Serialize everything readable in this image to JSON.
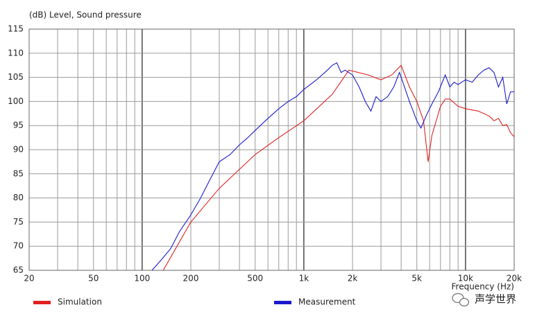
{
  "chart_data": {
    "type": "line",
    "title": "(dB)  Level, Sound pressure",
    "x_label": "Frequency  (Hz)",
    "x_log": true,
    "grid": true,
    "legend_position": "bottom",
    "watermark": "声学世界",
    "xlim": [
      20,
      20000
    ],
    "ylim": [
      65,
      115
    ],
    "xticks": [
      20,
      50,
      100,
      200,
      500,
      {
        "value": 1000,
        "label": "1k"
      },
      {
        "value": 2000,
        "label": "2k"
      },
      {
        "value": 5000,
        "label": "5k"
      },
      {
        "value": 10000,
        "label": "10k"
      },
      {
        "value": 20000,
        "label": "20k"
      }
    ],
    "x_minor_ticks": [
      30,
      40,
      60,
      70,
      80,
      90,
      300,
      400,
      600,
      700,
      800,
      900,
      3000,
      4000,
      6000,
      7000,
      8000,
      9000
    ],
    "yticks": [
      65,
      70,
      75,
      80,
      85,
      90,
      95,
      100,
      105,
      110,
      115
    ],
    "series": [
      {
        "name": "Simulation",
        "color": "#e02020",
        "x": [
          135,
          200,
          300,
          500,
          700,
          1000,
          1500,
          1900,
          2500,
          3000,
          3500,
          4000,
          4500,
          5000,
          5500,
          5870,
          6200,
          7000,
          7500,
          8000,
          9000,
          10000,
          12000,
          14000,
          15000,
          16000,
          17000,
          18000,
          19000,
          20000
        ],
        "values": [
          65,
          75,
          82,
          89,
          92.5,
          96,
          101.5,
          106.5,
          105.5,
          104.5,
          105.5,
          107.5,
          103,
          100,
          96,
          87.5,
          93,
          99,
          100.5,
          100.5,
          99,
          98.5,
          98,
          97,
          96,
          96.5,
          95,
          95.2,
          93.5,
          92.7
        ]
      },
      {
        "name": "Measurement",
        "color": "#1a1acc",
        "x": [
          115,
          130,
          150,
          170,
          200,
          230,
          260,
          300,
          350,
          400,
          450,
          500,
          600,
          700,
          800,
          900,
          1000,
          1200,
          1400,
          1500,
          1600,
          1700,
          1800,
          2000,
          2200,
          2400,
          2600,
          2800,
          3000,
          3300,
          3600,
          3900,
          4100,
          4500,
          5000,
          5300,
          5700,
          6200,
          6800,
          7500,
          8000,
          8500,
          9000,
          10000,
          11000,
          12000,
          13000,
          14000,
          15000,
          16000,
          17000,
          18000,
          19000,
          20000
        ],
        "values": [
          65,
          67,
          69.5,
          73,
          76.5,
          80,
          83.5,
          87.5,
          89,
          91,
          92.5,
          94,
          96.5,
          98.5,
          100,
          101,
          102.5,
          104.5,
          106.5,
          107.5,
          108,
          106,
          106.5,
          105.5,
          103,
          100,
          98,
          101,
          100,
          101,
          103,
          106,
          104,
          100,
          96,
          94.5,
          97,
          99.5,
          102,
          105.5,
          103,
          104,
          103.5,
          104.5,
          104,
          105.5,
          106.5,
          107,
          106,
          103,
          105,
          99.5,
          102,
          102
        ]
      }
    ]
  }
}
